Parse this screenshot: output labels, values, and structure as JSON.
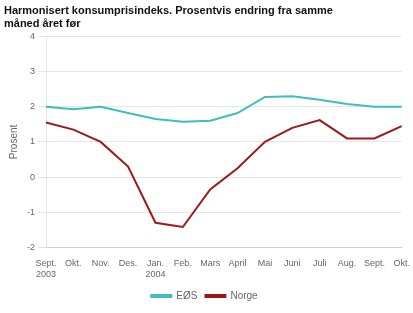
{
  "chart_data": {
    "type": "line",
    "title": "Harmonisert konsumprisindeks. Prosentvis endring fra samme\nmåned året før",
    "y_label": "Prosent",
    "categories": [
      "Sept.\n2003",
      "Okt.",
      "Nov.",
      "Des.",
      "Jan.\n2004",
      "Feb.",
      "Mars",
      "April",
      "Mai",
      "Juni",
      "Juli",
      "Aug.",
      "Sept.",
      "Okt."
    ],
    "series": [
      {
        "name": "EØS",
        "color": "#3bbfbf",
        "values": [
          2.0,
          1.93,
          2.0,
          1.82,
          1.65,
          1.57,
          1.6,
          1.82,
          2.28,
          2.3,
          2.2,
          2.08,
          2.0,
          2.0
        ]
      },
      {
        "name": "Norge",
        "color": "#9b1a1a",
        "values": [
          1.55,
          1.35,
          1.0,
          0.3,
          -1.3,
          -1.42,
          -0.35,
          0.25,
          1.0,
          1.4,
          1.62,
          1.1,
          1.1,
          1.45
        ]
      }
    ],
    "ylim": [
      -2,
      4
    ],
    "yticks": [
      -2,
      -1,
      0,
      1,
      2,
      3,
      4
    ],
    "grid": true,
    "legend": "bottom"
  }
}
